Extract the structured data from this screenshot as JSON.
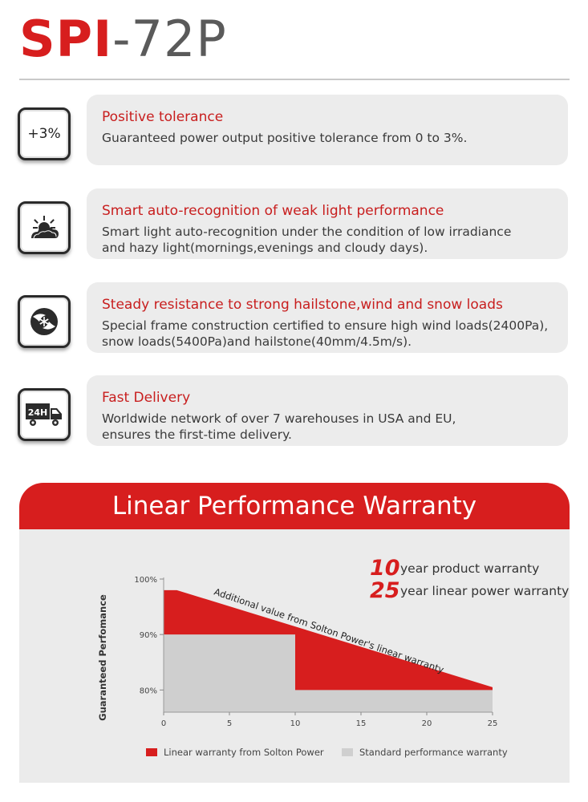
{
  "header": {
    "title_red": "SPI",
    "title_gray": "-72P"
  },
  "features": [
    {
      "icon": "plus-3-percent-icon",
      "icon_text": "+3%",
      "title": "Positive tolerance",
      "lines": [
        "Guaranteed power output positive tolerance from 0 to 3%."
      ]
    },
    {
      "icon": "sun-cloud-icon",
      "title": "Smart auto-recognition of weak light performance",
      "lines": [
        "Smart light auto-recognition under the condition of low irradiance",
        "and hazy light(mornings,evenings and cloudy days)."
      ]
    },
    {
      "icon": "wind-snow-icon",
      "title": "Steady resistance to strong hailstone,wind and snow loads",
      "lines": [
        "Special frame construction certified to ensure high wind loads(2400Pa),",
        "snow loads(5400Pa)and hailstone(40mm/4.5m/s)."
      ]
    },
    {
      "icon": "truck-24h-icon",
      "icon_text": "24H",
      "title": "Fast Delivery",
      "lines": [
        "Worldwide network of over 7 warehouses in USA  and EU,",
        "ensures the first-time delivery."
      ]
    }
  ],
  "warranty": {
    "banner": "Linear Performance Warranty",
    "product_years": "10",
    "product_label": "year product warranty",
    "linear_years": "25",
    "linear_label": "year linear power warranty"
  },
  "chart_data": {
    "type": "area",
    "ylabel": "Guaranteed Perfomance",
    "xlabel": "",
    "x_ticks": [
      0,
      5,
      10,
      15,
      20,
      25
    ],
    "y_ticks": [
      "80%",
      "90%",
      "100%"
    ],
    "xlim": [
      0,
      25
    ],
    "ylim": [
      76,
      100
    ],
    "annotation": "Additional value from Solton Power's linear warranty",
    "series": [
      {
        "name": "Linear warranty from Solton Power",
        "color": "#d71e1e",
        "points": [
          [
            0,
            98
          ],
          [
            1,
            98
          ],
          [
            25,
            80.5
          ]
        ]
      },
      {
        "name": "Standard performance warranty",
        "color": "#cfcfcf",
        "points": [
          [
            0,
            90
          ],
          [
            10,
            90
          ],
          [
            10,
            80
          ],
          [
            25,
            80
          ]
        ]
      }
    ],
    "legend_position": "bottom"
  },
  "colors": {
    "accent": "#d71e1e",
    "card": "#ececec",
    "panel": "#ebebeb"
  }
}
